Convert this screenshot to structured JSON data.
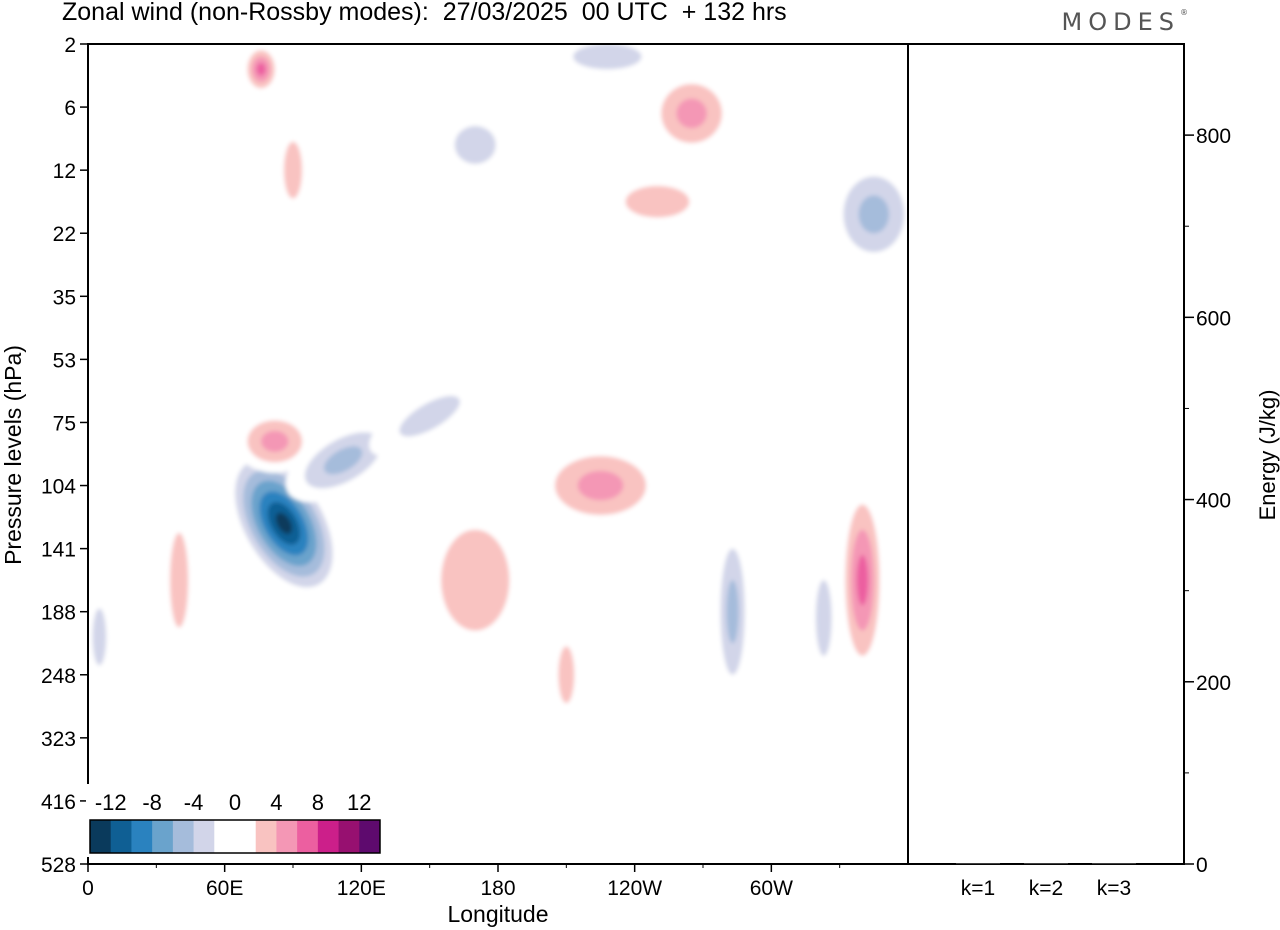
{
  "header": {
    "title": "Zonal wind (non-Rossby modes):  27/03/2025  00 UTC  + 132 hrs",
    "logo": "MODES"
  },
  "chart_data": [
    {
      "type": "heatmap",
      "xlabel": "Longitude",
      "ylabel": "Pressure levels (hPa)",
      "x_ticks": [
        "0",
        "60E",
        "120E",
        "180",
        "120W",
        "60W"
      ],
      "x_tick_values": [
        0,
        60,
        120,
        180,
        240,
        300
      ],
      "xlim": [
        0,
        360
      ],
      "y_ticks": [
        "2",
        "6",
        "12",
        "22",
        "35",
        "53",
        "75",
        "104",
        "141",
        "188",
        "248",
        "323",
        "416",
        "528"
      ],
      "y_axis": "pressure levels, top to bottom",
      "colorbar": {
        "labels": [
          "-12",
          "-8",
          "-4",
          "0",
          "4",
          "8",
          "12"
        ],
        "label_values": [
          -12,
          -8,
          -4,
          0,
          4,
          8,
          12
        ],
        "colors": [
          "#0a3a5c",
          "#0f5f94",
          "#2a82bf",
          "#6aa3cc",
          "#a5bcdb",
          "#d2d5e9",
          "#ffffff",
          "#ffffff",
          "#f9c3c1",
          "#f497b5",
          "#ec5fa0",
          "#cc1f8a",
          "#971070",
          "#5e0a6e"
        ]
      },
      "features": [
        {
          "lon": 86,
          "level_index": 7.6,
          "value": -14,
          "rx": 20,
          "ry": 1.3
        },
        {
          "lon": 112,
          "level_index": 6.6,
          "value": -6,
          "rx": 28,
          "ry": 0.5
        },
        {
          "lon": 150,
          "level_index": 5.9,
          "value": -3,
          "rx": 30,
          "ry": 0.4
        },
        {
          "lon": 82,
          "level_index": 6.3,
          "value": 6,
          "rx": 18,
          "ry": 0.5
        },
        {
          "lon": 225,
          "level_index": 7.0,
          "value": 6,
          "rx": 30,
          "ry": 0.7
        },
        {
          "lon": 170,
          "level_index": 8.5,
          "value": 3,
          "rx": 30,
          "ry": 1.6
        },
        {
          "lon": 340,
          "level_index": 8.5,
          "value": 8,
          "rx": 10,
          "ry": 1.6
        },
        {
          "lon": 283,
          "level_index": 9.0,
          "value": -5,
          "rx": 8,
          "ry": 1.5
        },
        {
          "lon": 323,
          "level_index": 9.1,
          "value": -4,
          "rx": 7,
          "ry": 1.2
        },
        {
          "lon": 265,
          "level_index": 1.1,
          "value": 6,
          "rx": 20,
          "ry": 0.7
        },
        {
          "lon": 76,
          "level_index": 0.4,
          "value": 7,
          "rx": 8,
          "ry": 0.4
        },
        {
          "lon": 345,
          "level_index": 2.7,
          "value": -5,
          "rx": 20,
          "ry": 0.9
        },
        {
          "lon": 228,
          "level_index": 0.2,
          "value": -4,
          "rx": 30,
          "ry": 0.4
        },
        {
          "lon": 170,
          "level_index": 1.6,
          "value": -3,
          "rx": 18,
          "ry": 0.6
        },
        {
          "lon": 40,
          "level_index": 8.5,
          "value": 4,
          "rx": 8,
          "ry": 1.5
        },
        {
          "lon": 5,
          "level_index": 9.4,
          "value": -3,
          "rx": 6,
          "ry": 0.9
        },
        {
          "lon": 210,
          "level_index": 10.0,
          "value": 3,
          "rx": 7,
          "ry": 0.9
        },
        {
          "lon": 90,
          "level_index": 2.0,
          "value": 3,
          "rx": 8,
          "ry": 0.9
        },
        {
          "lon": 250,
          "level_index": 2.5,
          "value": 3,
          "rx": 28,
          "ry": 0.5
        }
      ]
    },
    {
      "type": "bar",
      "ylabel": "Energy (J/kg)",
      "categories": [
        "k=1",
        "k=2",
        "k=3"
      ],
      "values": [
        1,
        1,
        1
      ],
      "ylim": [
        0,
        900
      ],
      "y_ticks": [
        0,
        200,
        400,
        600,
        800
      ]
    }
  ]
}
